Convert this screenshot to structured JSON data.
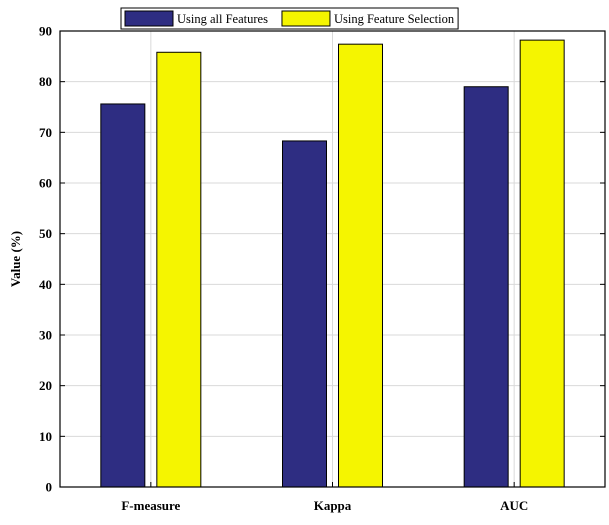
{
  "chart_data": {
    "type": "bar",
    "title": "",
    "xlabel": "",
    "ylabel": "Value (%)",
    "categories": [
      "F-measure",
      "Kappa",
      "AUC"
    ],
    "series": [
      {
        "name": "Using all Features",
        "values": [
          75.6,
          68.3,
          79.0
        ]
      },
      {
        "name": "Using Feature Selection",
        "values": [
          85.8,
          87.4,
          88.2
        ]
      }
    ],
    "ylim": [
      0,
      90
    ],
    "yticks": [
      "0",
      "10",
      "20",
      "30",
      "40",
      "50",
      "60",
      "70",
      "80",
      "90"
    ],
    "grid": true,
    "legend_position": "top",
    "colors": {
      "series": [
        "#2e2d82",
        "#f5f500"
      ],
      "grid": "#d9d9d9",
      "axis": "#000000"
    }
  }
}
